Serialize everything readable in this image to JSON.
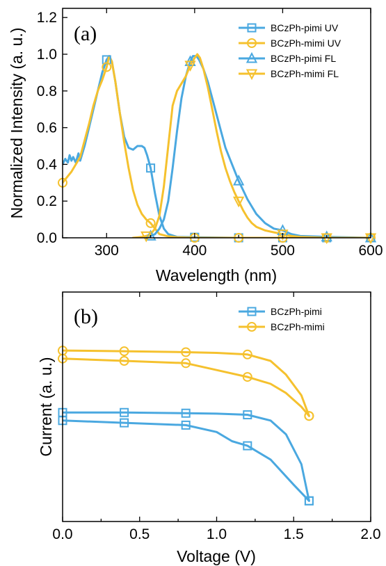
{
  "chart_data": [
    {
      "type": "line",
      "panel_label": "(a)",
      "xlabel": "Wavelength (nm)",
      "ylabel": "Normalized Intensity (a. u.)",
      "xlim": [
        250,
        600
      ],
      "ylim": [
        0,
        1.25
      ],
      "xticks": [
        300,
        400,
        500,
        600
      ],
      "yticks": [
        0.0,
        0.2,
        0.4,
        0.6,
        0.8,
        1.0,
        1.2
      ],
      "ytick_labels": [
        "0.0",
        "0.2",
        "0.4",
        "0.6",
        "0.8",
        "1.0",
        "1.2"
      ],
      "grid": false,
      "legend_position": "top-right",
      "series": [
        {
          "name": "BCzPh-pimi UV",
          "color": "#4aa8e0",
          "marker": "square",
          "x": [
            250,
            253,
            256,
            258,
            260,
            262,
            265,
            268,
            270,
            275,
            280,
            285,
            290,
            295,
            300,
            303,
            306,
            310,
            315,
            320,
            325,
            330,
            335,
            340,
            343,
            346,
            350,
            355,
            360,
            365,
            370,
            380,
            400,
            450,
            500,
            550,
            600
          ],
          "y": [
            0.4,
            0.43,
            0.41,
            0.45,
            0.42,
            0.44,
            0.41,
            0.46,
            0.42,
            0.5,
            0.6,
            0.7,
            0.8,
            0.9,
            0.97,
            0.99,
            0.96,
            0.85,
            0.68,
            0.55,
            0.49,
            0.48,
            0.5,
            0.5,
            0.49,
            0.45,
            0.38,
            0.24,
            0.12,
            0.05,
            0.02,
            0.005,
            0.003,
            0.0,
            0.0,
            0.0,
            0.0
          ],
          "marker_x": [
            300,
            350,
            400,
            450,
            500,
            550,
            600
          ]
        },
        {
          "name": "BCzPh-mimi UV",
          "color": "#f5c12e",
          "marker": "circle",
          "x": [
            250,
            255,
            260,
            265,
            270,
            275,
            280,
            285,
            290,
            295,
            300,
            303,
            306,
            310,
            315,
            320,
            325,
            330,
            335,
            340,
            345,
            350,
            355,
            360,
            370,
            380,
            400,
            450,
            500,
            550,
            600
          ],
          "y": [
            0.3,
            0.33,
            0.36,
            0.4,
            0.44,
            0.53,
            0.62,
            0.72,
            0.8,
            0.86,
            0.93,
            0.99,
            0.96,
            0.85,
            0.68,
            0.52,
            0.38,
            0.26,
            0.18,
            0.13,
            0.1,
            0.08,
            0.05,
            0.02,
            0.008,
            0.003,
            0.0,
            0.0,
            0.0,
            0.0,
            0.0
          ],
          "marker_x": [
            250,
            300,
            350,
            400,
            450,
            500,
            550,
            600
          ]
        },
        {
          "name": "BCzPh-pimi FL",
          "color": "#4aa8e0",
          "marker": "triangle-up",
          "x": [
            340,
            345,
            350,
            355,
            360,
            365,
            370,
            375,
            380,
            385,
            390,
            395,
            398,
            402,
            405,
            410,
            415,
            420,
            425,
            430,
            435,
            440,
            445,
            450,
            455,
            460,
            465,
            470,
            480,
            490,
            500,
            510,
            520,
            550,
            600
          ],
          "y": [
            0.0,
            0.005,
            0.01,
            0.02,
            0.05,
            0.1,
            0.2,
            0.38,
            0.58,
            0.76,
            0.88,
            0.96,
            0.99,
            0.99,
            0.97,
            0.92,
            0.85,
            0.76,
            0.67,
            0.58,
            0.49,
            0.43,
            0.37,
            0.31,
            0.26,
            0.21,
            0.17,
            0.13,
            0.08,
            0.05,
            0.04,
            0.02,
            0.01,
            0.005,
            0.0
          ],
          "marker_x": [
            350,
            395,
            450,
            500,
            550,
            600
          ]
        },
        {
          "name": "BCzPh-mimi FL",
          "color": "#f5c12e",
          "marker": "triangle-down",
          "x": [
            330,
            340,
            345,
            350,
            355,
            360,
            365,
            370,
            375,
            380,
            385,
            390,
            395,
            400,
            403,
            406,
            410,
            415,
            420,
            425,
            430,
            435,
            440,
            445,
            450,
            455,
            460,
            465,
            470,
            480,
            490,
            500,
            510,
            520,
            550,
            600
          ],
          "y": [
            0.0,
            0.005,
            0.01,
            0.02,
            0.05,
            0.12,
            0.28,
            0.5,
            0.72,
            0.8,
            0.84,
            0.88,
            0.94,
            0.98,
            1.0,
            0.98,
            0.92,
            0.82,
            0.7,
            0.58,
            0.47,
            0.38,
            0.31,
            0.25,
            0.2,
            0.15,
            0.11,
            0.08,
            0.06,
            0.04,
            0.03,
            0.02,
            0.01,
            0.005,
            0.0,
            0.0
          ],
          "marker_x": [
            345,
            395,
            450,
            500,
            550,
            600
          ]
        }
      ]
    },
    {
      "type": "line",
      "panel_label": "(b)",
      "xlabel": "Voltage (V)",
      "ylabel": "Current (a. u.)",
      "xlim": [
        0.0,
        2.0
      ],
      "ylim": [
        0.0,
        1.0
      ],
      "xticks": [
        0.0,
        0.5,
        1.0,
        1.5,
        2.0
      ],
      "xtick_labels": [
        "0.0",
        "0.5",
        "1.0",
        "1.5",
        "2.0"
      ],
      "yticks": [],
      "grid": false,
      "legend_position": "top-right",
      "series": [
        {
          "name": "BCzPh-pimi",
          "color": "#4aa8e0",
          "marker": "square",
          "curves": [
            {
              "x": [
                0.0,
                0.4,
                0.8,
                1.0,
                1.2,
                1.35,
                1.45,
                1.55,
                1.6
              ],
              "y": [
                0.475,
                0.475,
                0.472,
                0.47,
                0.465,
                0.44,
                0.38,
                0.25,
                0.09
              ]
            },
            {
              "x": [
                0.0,
                0.4,
                0.8,
                1.0,
                1.1,
                1.2,
                1.35,
                1.5,
                1.6
              ],
              "y": [
                0.44,
                0.43,
                0.42,
                0.39,
                0.35,
                0.33,
                0.27,
                0.16,
                0.09
              ]
            }
          ],
          "marker_x": [
            0.0,
            0.4,
            0.8,
            1.2,
            1.6
          ]
        },
        {
          "name": "BCzPh-mimi",
          "color": "#f5c12e",
          "marker": "circle",
          "curves": [
            {
              "x": [
                0.0,
                0.4,
                0.8,
                1.0,
                1.2,
                1.35,
                1.45,
                1.55,
                1.6
              ],
              "y": [
                0.745,
                0.742,
                0.738,
                0.735,
                0.728,
                0.7,
                0.64,
                0.55,
                0.46
              ]
            },
            {
              "x": [
                0.0,
                0.4,
                0.8,
                1.0,
                1.2,
                1.35,
                1.45,
                1.55,
                1.6
              ],
              "y": [
                0.71,
                0.7,
                0.69,
                0.66,
                0.63,
                0.6,
                0.56,
                0.5,
                0.46
              ]
            }
          ],
          "marker_x": [
            0.0,
            0.4,
            0.8,
            1.2,
            1.6
          ]
        }
      ]
    }
  ]
}
